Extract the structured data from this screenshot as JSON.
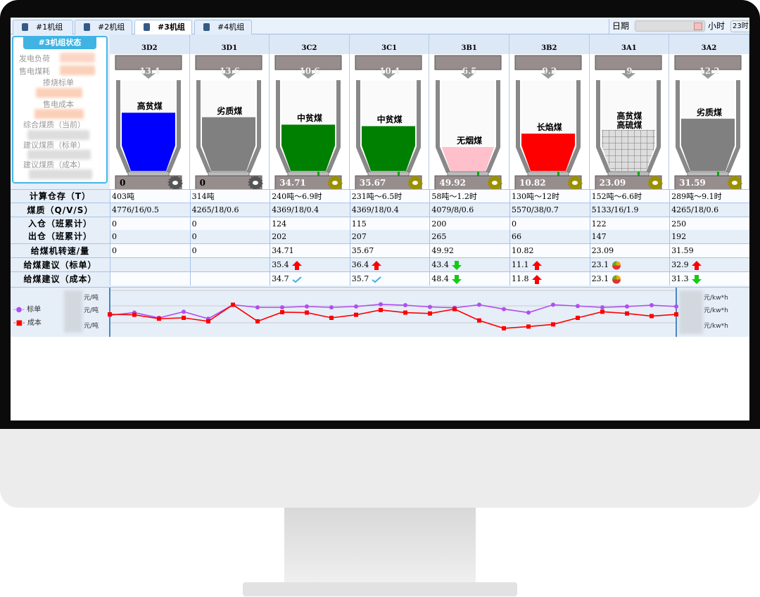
{
  "tabs": [
    {
      "label": "#1机组",
      "active": false
    },
    {
      "label": "#2机组",
      "active": false
    },
    {
      "label": "#3机组",
      "active": true
    },
    {
      "label": "#4机组",
      "active": false
    }
  ],
  "date_filter": {
    "date_label": "日期",
    "hour_label": "小时",
    "hour_value": "23时"
  },
  "status_panel": {
    "title": "#3机组状态",
    "labels": [
      "发电负荷",
      "售电煤耗",
      "掺烧标单",
      "售电成本",
      "综合煤质（当前）",
      "建议煤质（标单）",
      "建议煤质（成本）"
    ]
  },
  "bins": [
    {
      "name": "3D2",
      "rate": "13.4",
      "coal": "高贫煤",
      "level": 0.78,
      "color": "#0000ff",
      "feeder": "0",
      "feeder_on": false
    },
    {
      "name": "3D1",
      "rate": "13.6",
      "coal": "劣质煤",
      "level": 0.72,
      "color": "#808080",
      "feeder": "0",
      "feeder_on": false
    },
    {
      "name": "3C2",
      "rate": "10.6",
      "coal": "中贫煤",
      "level": 0.62,
      "color": "#008000",
      "feeder": "34.71",
      "feeder_on": true
    },
    {
      "name": "3C1",
      "rate": "10.4",
      "coal": "中贫煤",
      "level": 0.6,
      "color": "#008000",
      "feeder": "35.67",
      "feeder_on": true
    },
    {
      "name": "3B1",
      "rate": "6.5",
      "coal": "无烟煤",
      "level": 0.32,
      "color": "#ffc0cb",
      "feeder": "49.92",
      "feeder_on": true
    },
    {
      "name": "3B2",
      "rate": "9.2",
      "coal": "长焰煤",
      "level": 0.5,
      "color": "#ff0000",
      "feeder": "10.82",
      "feeder_on": true
    },
    {
      "name": "3A1",
      "rate": "9",
      "coal": "高贫煤\n高硫煤",
      "level": 0.55,
      "color": "grid",
      "feeder": "23.09",
      "feeder_on": true
    },
    {
      "name": "3A2",
      "rate": "12.2",
      "coal": "劣质煤",
      "level": 0.7,
      "color": "#808080",
      "feeder": "31.59",
      "feeder_on": true
    }
  ],
  "table": {
    "row_labels": [
      "计算仓存（T）",
      "煤质（Q/V/S）",
      "入仓（班累计）",
      "出仓（班累计）",
      "给煤机转速/量",
      "给煤建议（标单）",
      "给煤建议（成本）"
    ],
    "stock": [
      "403吨",
      "314吨",
      "240吨～6.9时",
      "231吨～6.5时",
      "58吨～1.2时",
      "130吨～12时",
      "152吨～6.6时",
      "289吨～9.1时"
    ],
    "quality": [
      "4776/16/0.5",
      "4265/18/0.6",
      "4369/18/0.4",
      "4369/18/0.4",
      "4079/8/0.6",
      "5570/38/0.7",
      "5133/16/1.9",
      "4265/18/0.6"
    ],
    "in": [
      "0",
      "0",
      "124",
      "115",
      "200",
      "0",
      "122",
      "250"
    ],
    "out": [
      "0",
      "0",
      "202",
      "207",
      "265",
      "66",
      "147",
      "192"
    ],
    "feeder": [
      "0",
      "0",
      "34.71",
      "35.67",
      "49.92",
      "10.82",
      "23.09",
      "31.59"
    ],
    "advice_std": [
      {
        "v": "",
        "icon": ""
      },
      {
        "v": "",
        "icon": ""
      },
      {
        "v": "35.4",
        "icon": "arrow-up"
      },
      {
        "v": "36.4",
        "icon": "arrow-up"
      },
      {
        "v": "43.4",
        "icon": "arrow-down"
      },
      {
        "v": "11.1",
        "icon": "arrow-up"
      },
      {
        "v": "23.1",
        "icon": "pie"
      },
      {
        "v": "32.9",
        "icon": "arrow-up"
      }
    ],
    "advice_cost": [
      {
        "v": "",
        "icon": ""
      },
      {
        "v": "",
        "icon": ""
      },
      {
        "v": "34.7",
        "icon": "check"
      },
      {
        "v": "35.7",
        "icon": "check"
      },
      {
        "v": "48.4",
        "icon": "arrow-down"
      },
      {
        "v": "11.8",
        "icon": "arrow-up"
      },
      {
        "v": "23.1",
        "icon": "pie"
      },
      {
        "v": "31.3",
        "icon": "arrow-down"
      }
    ]
  },
  "chart_data": {
    "type": "line",
    "left_unit": "元/吨",
    "right_unit": "元/kw*h",
    "legend_placement": "left",
    "series": [
      {
        "name": "标单",
        "color": "#b04ef0",
        "marker": "circle",
        "values": [
          56,
          62,
          50,
          64,
          48,
          80,
          74,
          74,
          76,
          74,
          76,
          81,
          79,
          75,
          73,
          80,
          70,
          62,
          80,
          77,
          74,
          76,
          79,
          76
        ]
      },
      {
        "name": "成本",
        "color": "#ff0000",
        "marker": "square",
        "values": [
          58,
          57,
          48,
          50,
          42,
          80,
          42,
          63,
          62,
          50,
          57,
          68,
          62,
          60,
          70,
          44,
          26,
          30,
          35,
          50,
          64,
          60,
          54,
          58
        ]
      }
    ]
  }
}
